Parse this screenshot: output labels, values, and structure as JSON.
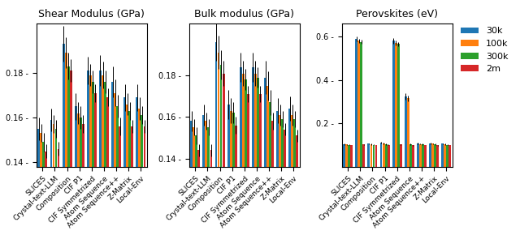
{
  "chart_data": [
    {
      "type": "bar",
      "title": "Shear Modulus (GPa)",
      "categories": [
        "SLICES",
        "Crystal-text-LLM",
        "Composition",
        "CIF P1",
        "CIF Symmetrized",
        "Atom Sequence",
        "Atom Sequence++",
        "Z-Matrix",
        "Local-Env"
      ],
      "series": [
        {
          "name": "30k",
          "values": [
            0.155,
            0.159,
            0.193,
            0.165,
            0.181,
            0.181,
            0.176,
            0.169,
            0.169
          ],
          "errors": [
            0.005,
            0.005,
            0.008,
            0.006,
            0.006,
            0.007,
            0.007,
            0.006,
            0.006
          ]
        },
        {
          "name": "100k",
          "values": [
            0.153,
            0.157,
            0.189,
            0.162,
            0.179,
            0.179,
            0.171,
            0.166,
            0.164
          ],
          "errors": [
            0.004,
            0.004,
            0.007,
            0.005,
            0.005,
            0.006,
            0.006,
            0.005,
            0.005
          ]
        },
        {
          "name": "300k",
          "values": [
            0.149,
            0.155,
            0.183,
            0.16,
            0.176,
            0.176,
            0.165,
            0.163,
            0.161
          ],
          "errors": [
            0.004,
            0.004,
            0.006,
            0.005,
            0.005,
            0.005,
            0.005,
            0.004,
            0.004
          ]
        },
        {
          "name": "2m",
          "values": [
            0.145,
            0.146,
            0.181,
            0.157,
            0.171,
            0.169,
            0.156,
            0.156,
            0.156
          ],
          "errors": [
            0.003,
            0.003,
            0.005,
            0.004,
            0.004,
            0.004,
            0.004,
            0.003,
            0.003
          ]
        }
      ],
      "ylim": [
        0.138,
        0.202
      ],
      "yticks": [
        {
          "value": 0.14,
          "label": "0.14 -"
        },
        {
          "value": 0.16,
          "label": "0.16 -"
        },
        {
          "value": 0.18,
          "label": "0.18 -"
        }
      ],
      "grid": false
    },
    {
      "type": "bar",
      "title": "Bulk modulus (GPa)",
      "categories": [
        "SLICES",
        "Crystal-text-LLM",
        "Composition",
        "CIF P1",
        "CIF Symmetrized",
        "Atom Sequence",
        "Atom Sequence++",
        "Z-Matrix",
        "Local-Env"
      ],
      "series": [
        {
          "name": "30k",
          "values": [
            0.158,
            0.161,
            0.196,
            0.166,
            0.184,
            0.184,
            0.179,
            0.163,
            0.164
          ],
          "errors": [
            0.005,
            0.005,
            0.009,
            0.007,
            0.007,
            0.007,
            0.008,
            0.006,
            0.006
          ]
        },
        {
          "name": "100k",
          "values": [
            0.155,
            0.158,
            0.191,
            0.163,
            0.181,
            0.181,
            0.175,
            0.161,
            0.161
          ],
          "errors": [
            0.004,
            0.004,
            0.008,
            0.006,
            0.006,
            0.006,
            0.007,
            0.005,
            0.005
          ]
        },
        {
          "name": "300k",
          "values": [
            0.151,
            0.155,
            0.185,
            0.162,
            0.178,
            0.179,
            0.167,
            0.159,
            0.159
          ],
          "errors": [
            0.004,
            0.004,
            0.007,
            0.005,
            0.005,
            0.005,
            0.006,
            0.004,
            0.004
          ]
        },
        {
          "name": "2m",
          "values": [
            0.144,
            0.144,
            0.181,
            0.156,
            0.171,
            0.171,
            0.158,
            0.154,
            0.151
          ],
          "errors": [
            0.003,
            0.003,
            0.006,
            0.004,
            0.004,
            0.004,
            0.004,
            0.003,
            0.003
          ]
        }
      ],
      "ylim": [
        0.136,
        0.205
      ],
      "yticks": [
        {
          "value": 0.14,
          "label": "0.14 -"
        },
        {
          "value": 0.16,
          "label": "0.16 -"
        },
        {
          "value": 0.18,
          "label": "0.18 -"
        }
      ],
      "grid": false
    },
    {
      "type": "bar",
      "title": "Perovskites (eV)",
      "categories": [
        "SLICES",
        "Crystal-text-LLM",
        "Composition",
        "CIF P1",
        "CIF Symmetrized",
        "Atom Sequence",
        "Atom Sequence++",
        "Z-Matrix",
        "Local-Env"
      ],
      "series": [
        {
          "name": "30k",
          "values": [
            0.105,
            0.59,
            0.106,
            0.111,
            0.58,
            0.325,
            0.107,
            0.108,
            0.106
          ],
          "errors": [
            0.003,
            0.012,
            0.003,
            0.004,
            0.012,
            0.015,
            0.003,
            0.004,
            0.003
          ]
        },
        {
          "name": "100k",
          "values": [
            0.103,
            0.58,
            0.104,
            0.108,
            0.57,
            0.315,
            0.105,
            0.106,
            0.104
          ],
          "errors": [
            0.002,
            0.01,
            0.002,
            0.003,
            0.01,
            0.012,
            0.002,
            0.003,
            0.002
          ]
        },
        {
          "name": "300k",
          "values": [
            0.102,
            0.575,
            0.102,
            0.105,
            0.565,
            0.103,
            0.104,
            0.103,
            0.101
          ],
          "errors": [
            0.002,
            0.009,
            0.002,
            0.003,
            0.009,
            0.003,
            0.002,
            0.003,
            0.002
          ]
        },
        {
          "name": "2m",
          "values": [
            0.1,
            0.103,
            0.1,
            0.101,
            0.103,
            0.1,
            0.1,
            0.1,
            0.1
          ],
          "errors": [
            0.001,
            0.002,
            0.001,
            0.002,
            0.002,
            0.002,
            0.001,
            0.002,
            0.001
          ]
        }
      ],
      "ylim": [
        0.0,
        0.66
      ],
      "yticks": [
        {
          "value": 0.2,
          "label": "0.2 -"
        },
        {
          "value": 0.4,
          "label": "0.4 -"
        },
        {
          "value": 0.6,
          "label": "0.6 -"
        }
      ],
      "grid": false,
      "legend": "upper left"
    }
  ]
}
